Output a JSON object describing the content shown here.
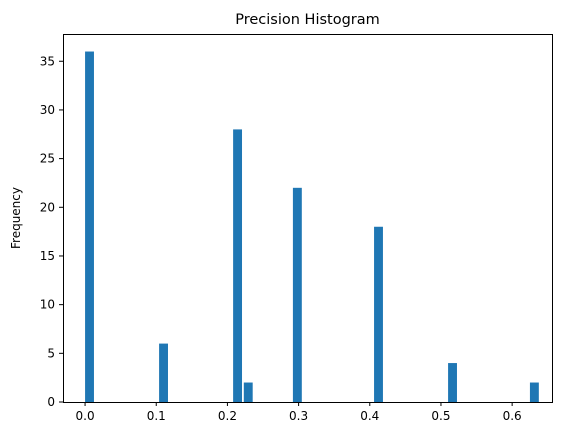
{
  "chart_data": {
    "type": "bar",
    "title": "Precision Histogram",
    "xlabel": "",
    "ylabel": "Frequency",
    "bar_color": "#1f77b4",
    "bins": [
      {
        "x": 0.0,
        "value": 36
      },
      {
        "x": 0.104,
        "value": 6
      },
      {
        "x": 0.208,
        "value": 28
      },
      {
        "x": 0.223,
        "value": 2
      },
      {
        "x": 0.292,
        "value": 22
      },
      {
        "x": 0.406,
        "value": 18
      },
      {
        "x": 0.51,
        "value": 4
      },
      {
        "x": 0.625,
        "value": 2
      }
    ],
    "bin_width": 0.0125,
    "xlim": [
      -0.031,
      0.656
    ],
    "ylim": [
      0,
      37.8
    ],
    "xticks": [
      {
        "value": 0.0,
        "label": "0.0"
      },
      {
        "value": 0.1,
        "label": "0.1"
      },
      {
        "value": 0.2,
        "label": "0.2"
      },
      {
        "value": 0.3,
        "label": "0.3"
      },
      {
        "value": 0.4,
        "label": "0.4"
      },
      {
        "value": 0.5,
        "label": "0.5"
      },
      {
        "value": 0.6,
        "label": "0.6"
      }
    ],
    "yticks": [
      {
        "value": 0,
        "label": "0"
      },
      {
        "value": 5,
        "label": "5"
      },
      {
        "value": 10,
        "label": "10"
      },
      {
        "value": 15,
        "label": "15"
      },
      {
        "value": 20,
        "label": "20"
      },
      {
        "value": 25,
        "label": "25"
      },
      {
        "value": 30,
        "label": "30"
      },
      {
        "value": 35,
        "label": "35"
      }
    ],
    "grid": false,
    "legend": "none"
  }
}
